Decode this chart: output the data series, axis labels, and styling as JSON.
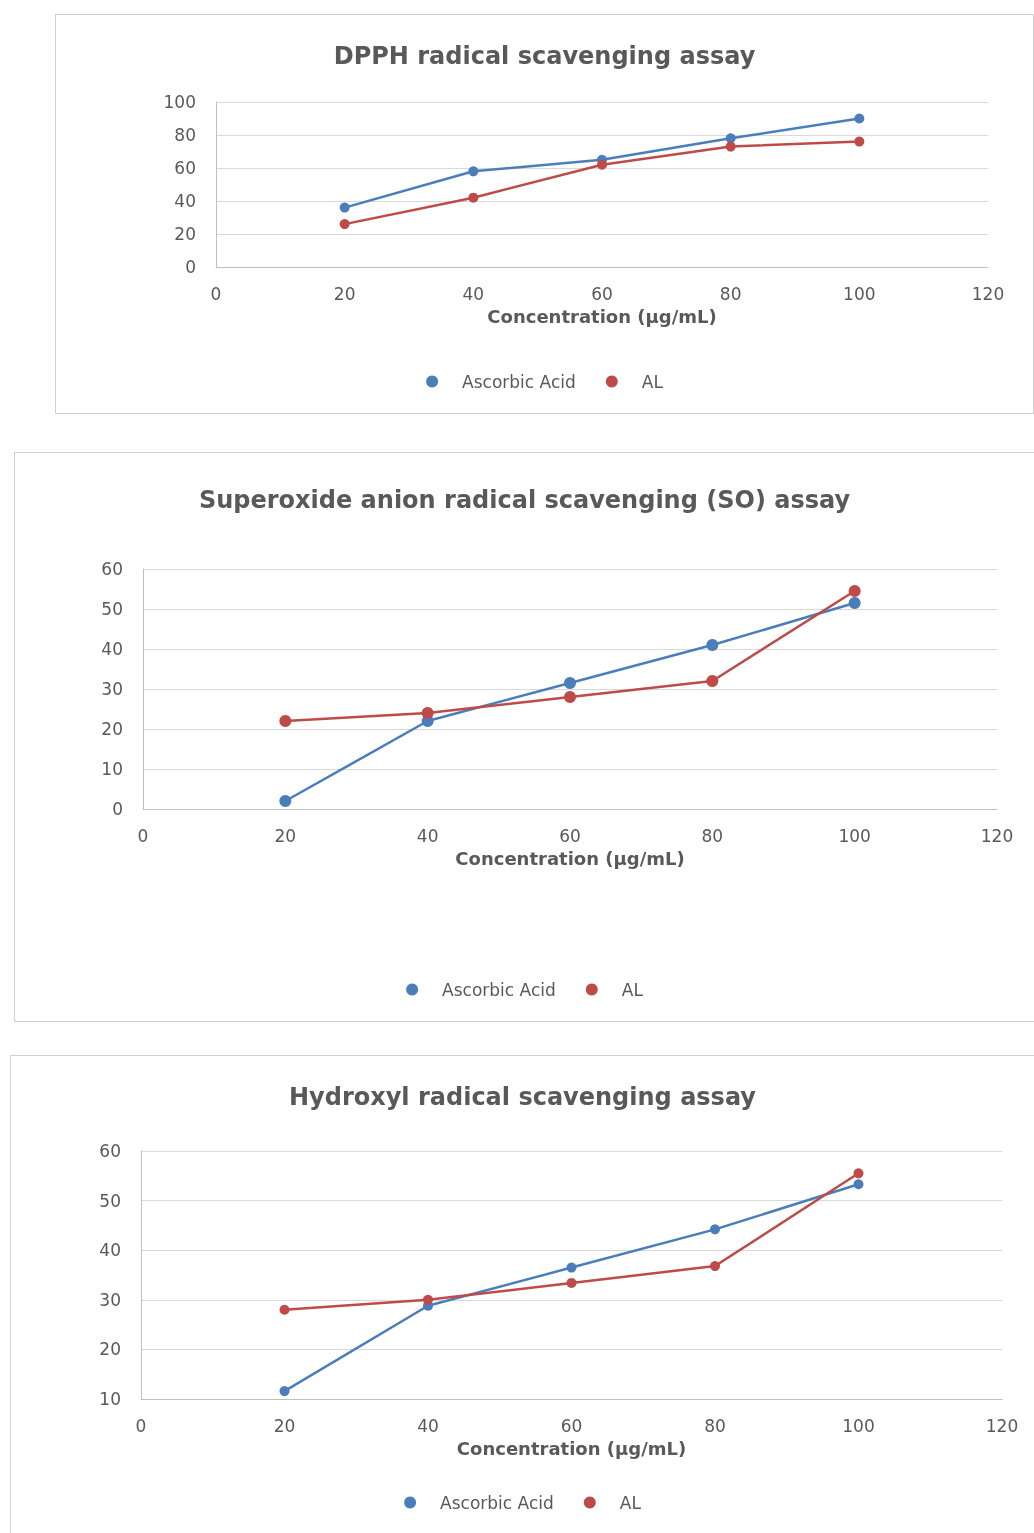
{
  "chart_data": [
    {
      "type": "line",
      "title": "DPPH radical scavenging assay",
      "xlabel": "Concentration (µg/mL)",
      "x": [
        20,
        40,
        60,
        80,
        100
      ],
      "xlim": [
        0,
        120
      ],
      "xticks": [
        0,
        20,
        40,
        60,
        80,
        100,
        120
      ],
      "ylim": [
        0,
        100
      ],
      "yticks": [
        0,
        20,
        40,
        60,
        80,
        100
      ],
      "grid": "y",
      "legend": "bottom",
      "marker": "circle",
      "line_style": "solid",
      "series": [
        {
          "name": "Ascorbic Acid",
          "color": "#4a7ebb",
          "values": [
            36,
            58,
            65,
            78,
            90
          ]
        },
        {
          "name": "AL",
          "color": "#be4b48",
          "values": [
            26,
            42,
            62,
            73,
            76
          ]
        }
      ]
    },
    {
      "type": "line",
      "title": "Superoxide anion radical scavenging (SO) assay",
      "xlabel": "Concentration (µg/mL)",
      "x": [
        20,
        40,
        60,
        80,
        100
      ],
      "xlim": [
        0,
        120
      ],
      "xticks": [
        0,
        20,
        40,
        60,
        80,
        100,
        120
      ],
      "ylim": [
        0,
        60
      ],
      "yticks": [
        0,
        10,
        20,
        30,
        40,
        50,
        60
      ],
      "grid": "y",
      "legend": "bottom",
      "marker": "circle",
      "line_style": "solid",
      "series": [
        {
          "name": "Ascorbic Acid",
          "color": "#4a7ebb",
          "values": [
            2,
            22,
            31.5,
            41,
            51.5
          ]
        },
        {
          "name": "AL",
          "color": "#be4b48",
          "values": [
            22,
            24,
            28,
            32,
            54.5
          ]
        }
      ]
    },
    {
      "type": "line",
      "title": "Hydroxyl radical scavenging assay",
      "xlabel": "Concentration (µg/mL)",
      "x": [
        20,
        40,
        60,
        80,
        100
      ],
      "xlim": [
        0,
        120
      ],
      "xticks": [
        0,
        20,
        40,
        60,
        80,
        100,
        120
      ],
      "ylim": [
        10,
        60
      ],
      "yticks": [
        10,
        20,
        30,
        40,
        50,
        60
      ],
      "grid": "y",
      "legend": "bottom",
      "marker": "circle",
      "line_style": "solid",
      "series": [
        {
          "name": "Ascorbic Acid",
          "color": "#4a7ebb",
          "values": [
            11.6,
            28.8,
            36.5,
            44.2,
            53.3
          ]
        },
        {
          "name": "AL",
          "color": "#be4b48",
          "values": [
            28,
            30,
            33.4,
            36.8,
            55.5
          ]
        }
      ]
    }
  ]
}
